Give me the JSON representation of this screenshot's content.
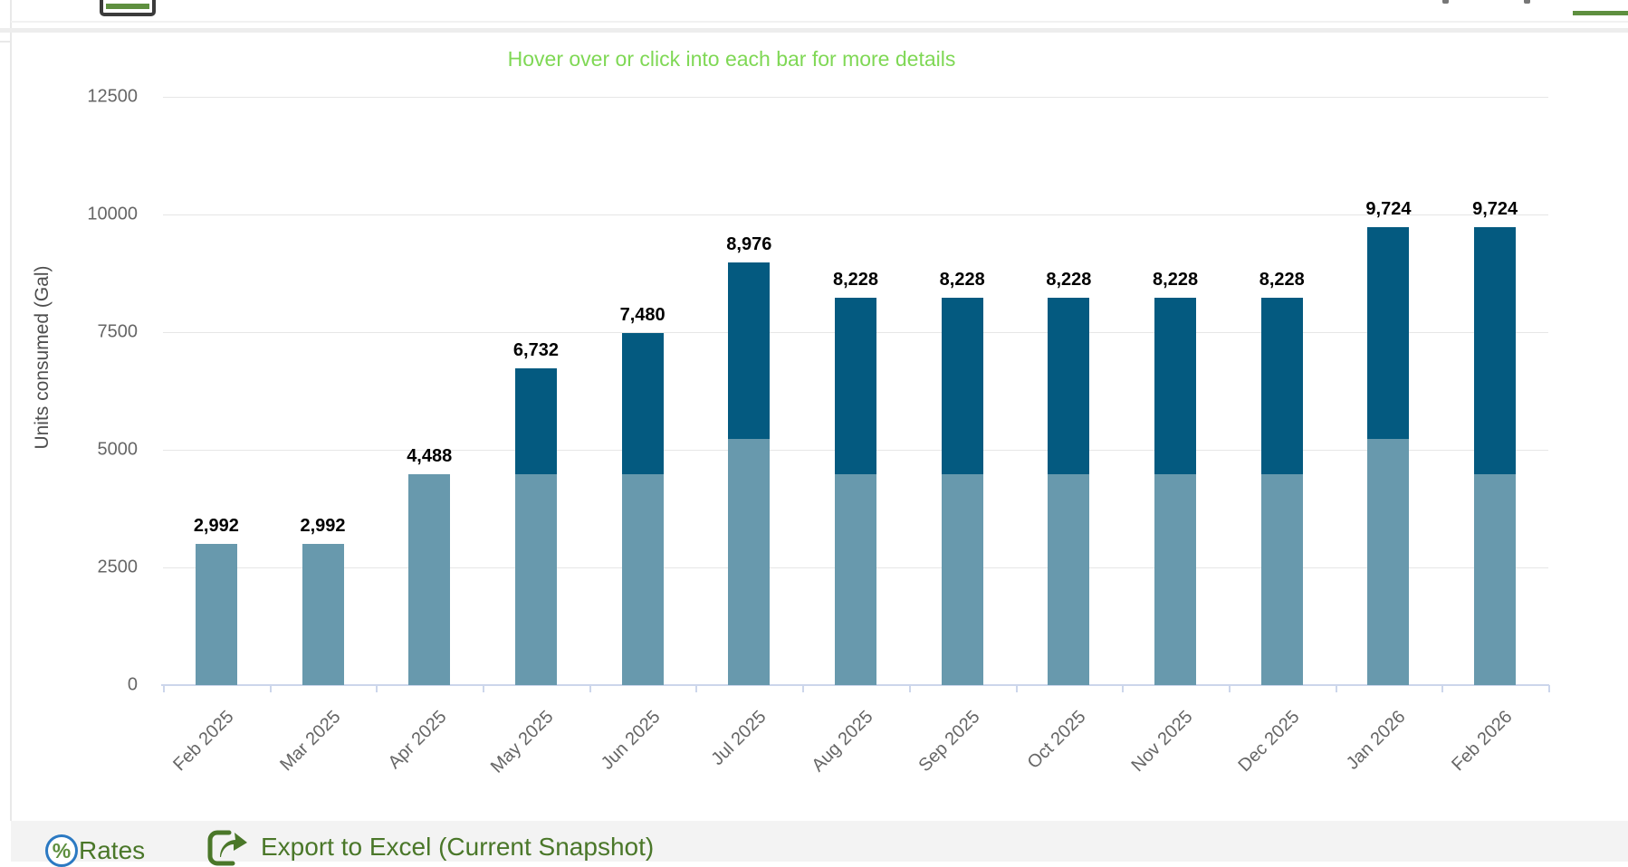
{
  "chart_data": {
    "type": "bar",
    "stacked": true,
    "title": "Hover over or click into each bar for more details",
    "ylabel": "Units consumed (Gal)",
    "xlabel": "",
    "categories": [
      "Feb 2025",
      "Mar 2025",
      "Apr 2025",
      "May 2025",
      "Jun 2025",
      "Jul 2025",
      "Aug 2025",
      "Sep 2025",
      "Oct 2025",
      "Nov 2025",
      "Dec 2025",
      "Jan 2026",
      "Feb 2026"
    ],
    "series": [
      {
        "name": "light-blue-segment",
        "color": "#6899ad",
        "values": [
          2992,
          2992,
          4488,
          4488,
          4488,
          5236,
          4488,
          4488,
          4488,
          4488,
          4488,
          5236,
          4488
        ]
      },
      {
        "name": "dark-blue-segment",
        "color": "#045a80",
        "values": [
          0,
          0,
          0,
          2244,
          2992,
          3740,
          3740,
          3740,
          3740,
          3740,
          3740,
          4488,
          5236
        ]
      }
    ],
    "totals": [
      2992,
      2992,
      4488,
      6732,
      7480,
      8976,
      8228,
      8228,
      8228,
      8228,
      8228,
      9724,
      9724
    ],
    "total_labels": [
      "2,992",
      "2,992",
      "4,488",
      "6,732",
      "7,480",
      "8,976",
      "8,228",
      "8,228",
      "8,228",
      "8,228",
      "8,228",
      "9,724",
      "9,724"
    ],
    "yticks": [
      0,
      2500,
      5000,
      7500,
      10000,
      12500
    ],
    "ylim": [
      0,
      13000
    ],
    "grid": true,
    "legend_position": "none"
  },
  "toolbar": {
    "rates_label": "Rates",
    "rates_icon": "%",
    "export_label": "Export to Excel (Current Snapshot)"
  },
  "colors": {
    "bar_light": "#6899ad",
    "bar_dark": "#045a80",
    "hint_green": "#7fd855",
    "toolbar_green": "#4a7729",
    "accent_olive": "#5e8f3f",
    "circle_blue": "#2b79c2",
    "gridline": "#e6e6e6",
    "axis_line": "#ccd6eb",
    "tick_text": "#666666"
  }
}
